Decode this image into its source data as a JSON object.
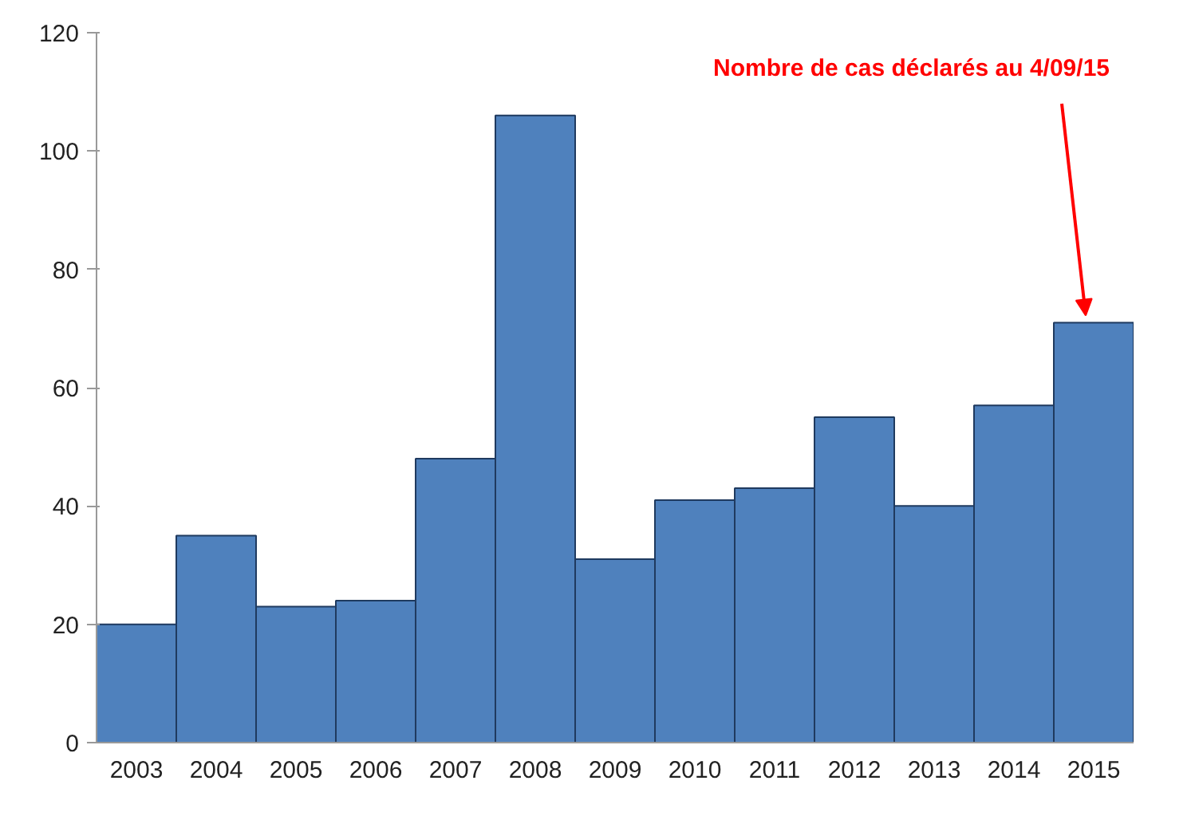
{
  "chart_data": {
    "type": "bar",
    "categories": [
      "2003",
      "2004",
      "2005",
      "2006",
      "2007",
      "2008",
      "2009",
      "2010",
      "2011",
      "2012",
      "2013",
      "2014",
      "2015"
    ],
    "values": [
      20,
      35,
      23,
      24,
      48,
      106,
      31,
      41,
      43,
      55,
      40,
      57,
      71
    ],
    "color": "#4f81bd",
    "ylim": [
      0,
      120
    ],
    "yticks": [
      0,
      20,
      40,
      60,
      80,
      100,
      120
    ],
    "grid": false,
    "annotations": [
      {
        "text": "Nombre de cas déclarés au 4/09/15",
        "x": "2015",
        "y": 71
      }
    ]
  }
}
